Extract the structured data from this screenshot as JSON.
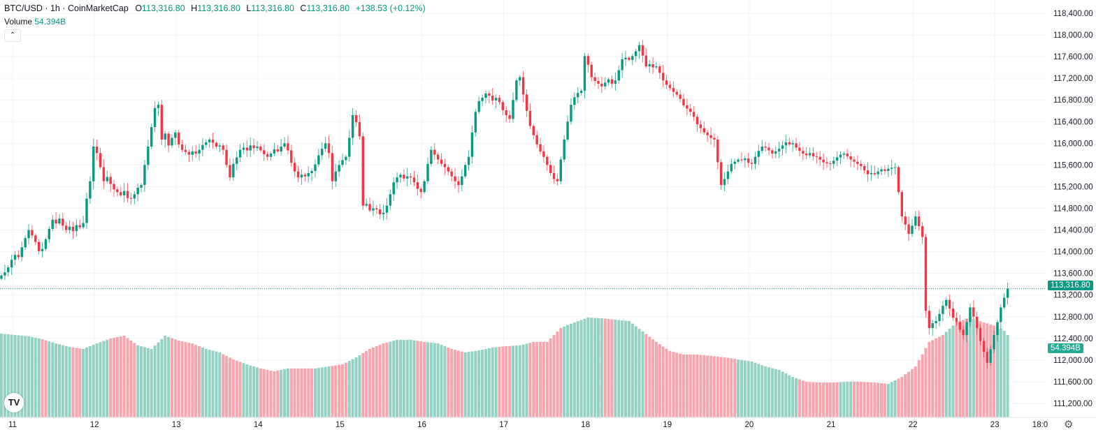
{
  "header": {
    "symbol": "BTC/USD · 1h · CoinMarketCap",
    "open_label": "O",
    "open": "113,316.80",
    "high_label": "H",
    "high": "113,316.80",
    "low_label": "L",
    "low": "113,316.80",
    "close_label": "C",
    "close": "113,316.80",
    "change": "+138.53 (+0.12%)",
    "volume_label": "Volume",
    "volume_value": "54.394B",
    "collapse_icon": "chevron-up-icon"
  },
  "price_tag": "113,316.80",
  "volume_tag": "54.394B",
  "colors": {
    "up": "#089981",
    "down": "#F23645",
    "vol_up": "#93d1c4",
    "vol_down": "#f9a5ad",
    "grid": "#f0f3fa"
  },
  "icons": {
    "settings": "gear-icon",
    "logo": "tradingview-logo"
  },
  "chart_data": {
    "type": "candlestick",
    "interval": "1h",
    "ylim": [
      111000,
      118600
    ],
    "grid": true,
    "y_ticks": [
      "118,400.00",
      "118,000.00",
      "117,600.00",
      "117,200.00",
      "116,800.00",
      "116,400.00",
      "116,000.00",
      "115,600.00",
      "115,200.00",
      "114,800.00",
      "114,400.00",
      "114,000.00",
      "113,600.00",
      "113,200.00",
      "112,800.00",
      "112,400.00",
      "112,000.00",
      "111,600.00",
      "111,200.00"
    ],
    "y_tick_values": [
      118400,
      118000,
      117600,
      117200,
      116800,
      116400,
      116000,
      115600,
      115200,
      114800,
      114400,
      114000,
      113600,
      113200,
      112800,
      112400,
      112000,
      111600,
      111200
    ],
    "x_ticks": [
      "11",
      "12",
      "13",
      "14",
      "15",
      "16",
      "17",
      "18",
      "19",
      "20",
      "21",
      "22",
      "23",
      "18:0"
    ],
    "last_price": 113316.8,
    "last_volume_B": 54.394,
    "closes": [
      113560,
      113620,
      113710,
      113850,
      113940,
      113900,
      114080,
      114250,
      114400,
      114300,
      114180,
      114010,
      114050,
      114230,
      114420,
      114590,
      114520,
      114610,
      114480,
      114400,
      114460,
      114380,
      114490,
      114450,
      114530,
      114980,
      115300,
      115940,
      115820,
      115560,
      115300,
      115380,
      115250,
      115150,
      115100,
      115040,
      115120,
      114990,
      114980,
      115060,
      115180,
      115230,
      115600,
      115940,
      116300,
      116650,
      116710,
      116070,
      116180,
      115960,
      116100,
      116200,
      115980,
      115880,
      115840,
      115790,
      115850,
      115810,
      115880,
      115970,
      116020,
      116070,
      116010,
      115940,
      115960,
      115880,
      115600,
      115370,
      115620,
      115740,
      115880,
      115920,
      115870,
      115960,
      115910,
      115940,
      115870,
      115800,
      115750,
      115810,
      115890,
      115850,
      115940,
      116000,
      115870,
      115640,
      115480,
      115370,
      115420,
      115390,
      115450,
      115490,
      115610,
      115780,
      115900,
      116000,
      115820,
      115300,
      115480,
      115600,
      115690,
      115750,
      116100,
      116520,
      116390,
      116130,
      114850,
      114880,
      114760,
      114800,
      114780,
      114690,
      114720,
      114850,
      115060,
      115280,
      115370,
      115420,
      115350,
      115390,
      115370,
      115280,
      115160,
      115100,
      115300,
      115620,
      115880,
      115790,
      115700,
      115620,
      115560,
      115480,
      115390,
      115300,
      115230,
      115390,
      115600,
      115750,
      116200,
      116580,
      116780,
      116840,
      116920,
      116880,
      116790,
      116840,
      116760,
      116610,
      116520,
      116450,
      116800,
      117160,
      117220,
      116900,
      116600,
      116320,
      116150,
      115980,
      115850,
      115750,
      115600,
      115450,
      115340,
      115300,
      115700,
      116070,
      116400,
      116710,
      116850,
      116930,
      116970,
      117610,
      117450,
      117220,
      117150,
      117100,
      117050,
      117120,
      117180,
      117100,
      117160,
      117350,
      117550,
      117580,
      117540,
      117610,
      117700,
      117810,
      117620,
      117420,
      117460,
      117400,
      117420,
      117300,
      117160,
      117080,
      117020,
      116950,
      116900,
      116820,
      116700,
      116640,
      116580,
      116490,
      116350,
      116280,
      116200,
      116150,
      116100,
      116070,
      115650,
      115230,
      115340,
      115480,
      115620,
      115660,
      115700,
      115690,
      115720,
      115640,
      115620,
      115750,
      115860,
      115940,
      115920,
      115870,
      115810,
      115850,
      115900,
      115960,
      116020,
      115980,
      116000,
      115920,
      115860,
      115810,
      115780,
      115820,
      115760,
      115750,
      115700,
      115650,
      115630,
      115620,
      115680,
      115740,
      115790,
      115810,
      115760,
      115700,
      115660,
      115620,
      115580,
      115500,
      115430,
      115450,
      115430,
      115480,
      115520,
      115490,
      115530,
      115550,
      115560,
      115100,
      114650,
      114500,
      114330,
      114480,
      114650,
      114470,
      114270,
      112910,
      112590,
      112680,
      112720,
      112850,
      113000,
      113110,
      112950,
      112780,
      112700,
      112560,
      112460,
      112700,
      112970,
      112800,
      112590,
      112350,
      112150,
      111950,
      112200,
      112460,
      112700,
      112970,
      113150,
      113316.8
    ],
    "volume_B_every_4h": [
      55.3,
      54.4,
      53.5,
      51.6,
      48.8,
      46.5,
      45.2,
      48.8,
      52.1,
      53.9,
      47.5,
      45.2,
      53.9,
      50.7,
      48.8,
      45.2,
      42.9,
      38.2,
      35.0,
      32.3,
      30.4,
      32.3,
      32.3,
      32.3,
      33.6,
      35.0,
      39.6,
      45.2,
      48.8,
      51.2,
      51.2,
      49.8,
      48.8,
      45.2,
      42.9,
      44.2,
      46.1,
      47.0,
      47.5,
      49.8,
      49.8,
      59.0,
      62.7,
      65.9,
      65.4,
      64.5,
      63.6,
      56.7,
      49.8,
      43.8,
      41.5,
      41.5,
      40.6,
      39.6,
      38.2,
      36.9,
      33.6,
      31.3,
      26.7,
      23.5,
      23.0,
      23.0,
      23.5,
      23.5,
      23.0,
      22.1,
      26.7,
      33.6,
      49.8,
      54.4,
      62.7,
      65.9,
      62.7,
      59.9,
      54.394
    ]
  }
}
